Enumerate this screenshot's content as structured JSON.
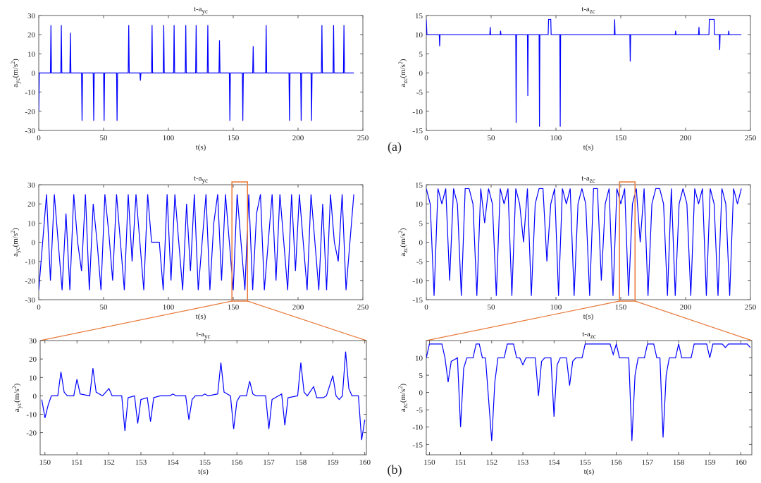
{
  "annotations": [
    "(a)",
    "(b)"
  ],
  "chart_data": [
    {
      "type": "line",
      "title": "t-a",
      "title_sub": "yc",
      "xlabel": "t(s)",
      "ylabel": "a",
      "ylabel_sub": "yc",
      "ylabel_unit": "(m/s",
      "ylabel_sup": "2",
      "ylabel_end": ")",
      "color": "#0000ff",
      "xlim": [
        0,
        250
      ],
      "xticks": [
        0,
        50,
        100,
        150,
        200,
        250
      ],
      "ylim": [
        -30,
        30
      ],
      "yticks": [
        -30,
        -20,
        -10,
        0,
        10,
        20,
        30
      ],
      "x": [
        0,
        0.4,
        9,
        9.4,
        9.8,
        17,
        17.4,
        17.8,
        24,
        24.4,
        24.8,
        33,
        33.4,
        33.8,
        42,
        42.4,
        42.8,
        50,
        50.4,
        50.8,
        60,
        60.4,
        60.8,
        69,
        69.4,
        69.8,
        78,
        78.4,
        78.8,
        87,
        87.4,
        87.8,
        96,
        96.4,
        96.8,
        104,
        104.4,
        104.8,
        113,
        113.4,
        113.8,
        121,
        121.4,
        121.8,
        130,
        130.4,
        130.8,
        139,
        139.4,
        139.8,
        147,
        147.4,
        147.8,
        157,
        157.4,
        157.8,
        165,
        165.4,
        165.8,
        175,
        175.4,
        175.8,
        193,
        193.4,
        193.8,
        202,
        202.4,
        202.8,
        210,
        210.4,
        210.8,
        218,
        218.4,
        218.8,
        227,
        227.4,
        227.8,
        235,
        235.4,
        235.8,
        243
      ],
      "values": [
        -20,
        0,
        0,
        25,
        0,
        0,
        25,
        0,
        0,
        21,
        0,
        0,
        -25,
        0,
        0,
        -25,
        0,
        0,
        -25,
        0,
        0,
        -25,
        0,
        0,
        25,
        0,
        0,
        -4,
        0,
        0,
        25,
        0,
        0,
        25,
        0,
        0,
        25,
        0,
        0,
        25,
        0,
        0,
        25,
        0,
        0,
        25,
        0,
        0,
        17,
        0,
        0,
        -25,
        0,
        0,
        -25,
        0,
        0,
        14,
        0,
        0,
        25,
        0,
        0,
        -25,
        0,
        0,
        -25,
        0,
        0,
        -25,
        0,
        0,
        25,
        0,
        0,
        25,
        0,
        0,
        25,
        0,
        0
      ]
    },
    {
      "type": "line",
      "title": "t-a",
      "title_sub": "zc",
      "xlabel": "t(s)",
      "ylabel": "a",
      "ylabel_sub": "zc",
      "ylabel_unit": "(m/s",
      "ylabel_sup": "2",
      "ylabel_end": ")",
      "color": "#0000ff",
      "xlim": [
        0,
        250
      ],
      "xticks": [
        0,
        50,
        100,
        150,
        200,
        250
      ],
      "ylim": [
        -15,
        15
      ],
      "yticks": [
        -15,
        -10,
        -5,
        0,
        5,
        10,
        15
      ],
      "x": [
        0,
        0.5,
        10,
        10.3,
        10.6,
        49,
        49.3,
        49.6,
        57,
        57.3,
        57.6,
        69,
        69.3,
        69.6,
        78,
        78.3,
        78.6,
        87,
        87.3,
        87.6,
        94,
        94.3,
        96,
        96.3,
        103,
        103.3,
        103.6,
        145,
        145.3,
        145.6,
        157,
        157.3,
        157.6,
        192,
        192.3,
        192.6,
        210,
        210.3,
        210.6,
        218,
        218.3,
        222,
        222.3,
        226,
        226.3,
        226.6,
        233,
        233.3,
        233.6,
        243
      ],
      "values": [
        14,
        10,
        10,
        7,
        10,
        10,
        12,
        10,
        10,
        11,
        10,
        10,
        -13,
        10,
        10,
        -6,
        10,
        10,
        -14,
        10,
        10,
        14,
        14,
        10,
        10,
        -14,
        10,
        10,
        14,
        10,
        10,
        3,
        10,
        10,
        11,
        10,
        10,
        12,
        10,
        10,
        14,
        14,
        10,
        10,
        6,
        10,
        10,
        11,
        10,
        10
      ]
    },
    {
      "type": "line",
      "title": "t-a",
      "title_sub": "yc",
      "xlabel": "t(s)",
      "ylabel": "a",
      "ylabel_sub": "yc",
      "ylabel_unit": "(m/s",
      "ylabel_sup": "2",
      "ylabel_end": ")",
      "color": "#0000ff",
      "xlim": [
        0,
        250
      ],
      "xticks": [
        0,
        50,
        100,
        150,
        200,
        250
      ],
      "ylim": [
        -30,
        30
      ],
      "yticks": [
        -30,
        -20,
        -10,
        0,
        10,
        20,
        30
      ],
      "zoom": [
        149,
        161
      ],
      "zoom_color": "#e8793a",
      "x": [
        0,
        3,
        6,
        9,
        12,
        15,
        18,
        21,
        24,
        27,
        30,
        33,
        36,
        39,
        42,
        45,
        48,
        51,
        54,
        57,
        60,
        63,
        66,
        69,
        72,
        75,
        78,
        81,
        84,
        87,
        90,
        93,
        96,
        99,
        102,
        105,
        108,
        111,
        114,
        117,
        120,
        123,
        126,
        129,
        132,
        135,
        138,
        141,
        144,
        147,
        150,
        153,
        156,
        159,
        162,
        165,
        168,
        171,
        174,
        177,
        180,
        183,
        186,
        189,
        192,
        195,
        198,
        201,
        204,
        207,
        210,
        213,
        216,
        219,
        222,
        225,
        228,
        231,
        234,
        237,
        240,
        243
      ],
      "values": [
        -25,
        0,
        25,
        -20,
        25,
        0,
        -25,
        15,
        -25,
        25,
        0,
        -15,
        25,
        -25,
        20,
        0,
        -25,
        25,
        5,
        -20,
        25,
        0,
        -25,
        25,
        -10,
        25,
        0,
        -25,
        25,
        0,
        0,
        0,
        -25,
        25,
        -20,
        25,
        0,
        -25,
        20,
        -15,
        25,
        -25,
        0,
        25,
        -25,
        10,
        25,
        -20,
        25,
        0,
        -25,
        25,
        0,
        -25,
        25,
        -25,
        15,
        25,
        -25,
        0,
        25,
        -20,
        25,
        0,
        -25,
        25,
        -15,
        25,
        0,
        -25,
        25,
        0,
        -25,
        20,
        -25,
        25,
        0,
        -10,
        25,
        -25,
        0,
        25
      ]
    },
    {
      "type": "line",
      "title": "t-a",
      "title_sub": "zc",
      "xlabel": "t(s)",
      "ylabel": "a",
      "ylabel_sub": "zc",
      "ylabel_unit": "(m/s",
      "ylabel_sup": "2",
      "ylabel_end": ")",
      "color": "#0000ff",
      "xlim": [
        0,
        250
      ],
      "xticks": [
        0,
        50,
        100,
        150,
        200,
        250
      ],
      "ylim": [
        -15,
        15
      ],
      "yticks": [
        -15,
        -10,
        -5,
        0,
        5,
        10,
        15
      ],
      "zoom": [
        149,
        161
      ],
      "zoom_color": "#e8793a",
      "x": [
        0,
        3,
        6,
        9,
        12,
        15,
        18,
        21,
        24,
        27,
        30,
        33,
        36,
        39,
        42,
        45,
        48,
        51,
        54,
        57,
        60,
        63,
        66,
        69,
        72,
        75,
        78,
        81,
        84,
        87,
        90,
        93,
        96,
        99,
        102,
        105,
        108,
        111,
        114,
        117,
        120,
        123,
        126,
        129,
        132,
        135,
        138,
        141,
        144,
        147,
        150,
        153,
        156,
        159,
        162,
        165,
        168,
        171,
        174,
        177,
        180,
        183,
        186,
        189,
        192,
        195,
        198,
        201,
        204,
        207,
        210,
        213,
        216,
        219,
        222,
        225,
        228,
        231,
        234,
        237,
        240,
        243
      ],
      "values": [
        14,
        10,
        -14,
        14,
        10,
        14,
        -10,
        14,
        10,
        -14,
        14,
        14,
        10,
        -14,
        14,
        5,
        14,
        10,
        -14,
        14,
        10,
        14,
        -14,
        14,
        10,
        0,
        14,
        -14,
        10,
        14,
        14,
        -5,
        10,
        14,
        -14,
        14,
        10,
        14,
        -14,
        10,
        14,
        10,
        -14,
        14,
        14,
        -10,
        10,
        14,
        -14,
        14,
        10,
        14,
        -14,
        10,
        14,
        0,
        14,
        -14,
        10,
        14,
        14,
        10,
        -14,
        14,
        -14,
        10,
        14,
        10,
        -14,
        14,
        10,
        14,
        -14,
        14,
        10,
        -14,
        14,
        10,
        -14,
        14,
        10,
        14
      ]
    },
    {
      "type": "line",
      "title": "t-a",
      "title_sub": "yc",
      "xlabel": "t(s)",
      "ylabel": "a",
      "ylabel_sub": "yc",
      "ylabel_unit": "(m/s",
      "ylabel_sup": "2",
      "ylabel_end": ")",
      "color": "#0000ff",
      "xlim": [
        149.85,
        160.05
      ],
      "xticks": [
        150,
        151,
        152,
        153,
        154,
        155,
        156,
        157,
        158,
        159,
        160
      ],
      "ylim": [
        -32,
        30
      ],
      "yticks": [
        -20,
        -10,
        0,
        10,
        20,
        30
      ],
      "x": [
        149.9,
        150,
        150.1,
        150.2,
        150.4,
        150.5,
        150.6,
        150.7,
        150.9,
        151,
        151.1,
        151.4,
        151.5,
        151.6,
        151.8,
        152,
        152.1,
        152.4,
        152.5,
        152.6,
        152.8,
        152.9,
        153,
        153.2,
        153.3,
        153.4,
        153.6,
        153.9,
        154,
        154.1,
        154.4,
        154.5,
        154.6,
        154.7,
        154.9,
        155,
        155.1,
        155.4,
        155.5,
        155.6,
        155.8,
        155.9,
        156,
        156.1,
        156.3,
        156.4,
        156.5,
        156.6,
        156.9,
        157,
        157.1,
        157.3,
        157.4,
        157.5,
        157.6,
        157.9,
        158,
        158.1,
        158.2,
        158.4,
        158.5,
        158.7,
        158.8,
        159,
        159.1,
        159.2,
        159.3,
        159.4,
        159.5,
        159.6,
        159.8,
        159.9,
        160
      ],
      "values": [
        -2,
        -12,
        -5,
        0,
        0,
        13,
        2,
        0,
        0,
        9,
        1,
        0,
        15,
        2,
        0,
        4,
        0,
        0,
        -19,
        -1,
        0,
        -15,
        -2,
        -1,
        -14,
        -1,
        0,
        0,
        1,
        0,
        0,
        -13,
        -2,
        0,
        0,
        1,
        0,
        1,
        18,
        2,
        0,
        -18,
        -3,
        0,
        0,
        8,
        1,
        0,
        0,
        -18,
        -2,
        0,
        1,
        -16,
        -1,
        0,
        18,
        2,
        0,
        5,
        -1,
        -1,
        0,
        11,
        0,
        -2,
        0,
        24,
        4,
        0,
        0,
        -24,
        -13
      ]
    },
    {
      "type": "line",
      "title": "t-a",
      "title_sub": "zc",
      "xlabel": "t(s)",
      "ylabel": "a",
      "ylabel_sub": "zc",
      "ylabel_unit": "(m/s",
      "ylabel_sup": "2",
      "ylabel_end": ")",
      "color": "#0000ff",
      "xlim": [
        149.9,
        160.35
      ],
      "xticks": [
        150,
        151,
        152,
        153,
        154,
        155,
        156,
        157,
        158,
        159,
        160
      ],
      "ylim": [
        -18,
        15
      ],
      "yticks": [
        -15,
        -10,
        -5,
        0,
        5,
        10
      ],
      "x": [
        149.9,
        150,
        150.4,
        150.5,
        150.6,
        150.7,
        150.9,
        151,
        151.1,
        151.2,
        151.4,
        151.5,
        151.6,
        151.7,
        151.8,
        152,
        152.1,
        152.2,
        152.4,
        152.5,
        152.7,
        152.8,
        152.9,
        153,
        153.1,
        153.4,
        153.5,
        153.6,
        153.7,
        153.9,
        154,
        154.1,
        154.2,
        154.4,
        154.5,
        154.6,
        154.7,
        154.9,
        155,
        155.8,
        155.9,
        156,
        156.1,
        156.4,
        156.5,
        156.6,
        156.7,
        156.9,
        157,
        157.2,
        157.3,
        157.4,
        157.5,
        157.6,
        157.7,
        157.9,
        158,
        158.1,
        158.4,
        158.5,
        158.9,
        159,
        159.1,
        159.4,
        159.5,
        159.6,
        160.2,
        160.3
      ],
      "values": [
        10,
        14,
        14,
        10,
        3,
        9,
        10,
        -10,
        7,
        10,
        10,
        14,
        14,
        10,
        10,
        -14,
        3,
        10,
        10,
        14,
        14,
        10,
        10,
        8,
        10,
        10,
        -1,
        9,
        10,
        10,
        -7,
        8,
        10,
        10,
        2,
        9,
        10,
        10,
        14,
        14,
        11,
        14,
        10,
        10,
        -14,
        5,
        10,
        10,
        14,
        14,
        10,
        10,
        -13,
        5,
        10,
        10,
        14,
        10,
        10,
        14,
        14,
        10,
        14,
        14,
        13,
        14,
        14,
        13
      ]
    }
  ]
}
